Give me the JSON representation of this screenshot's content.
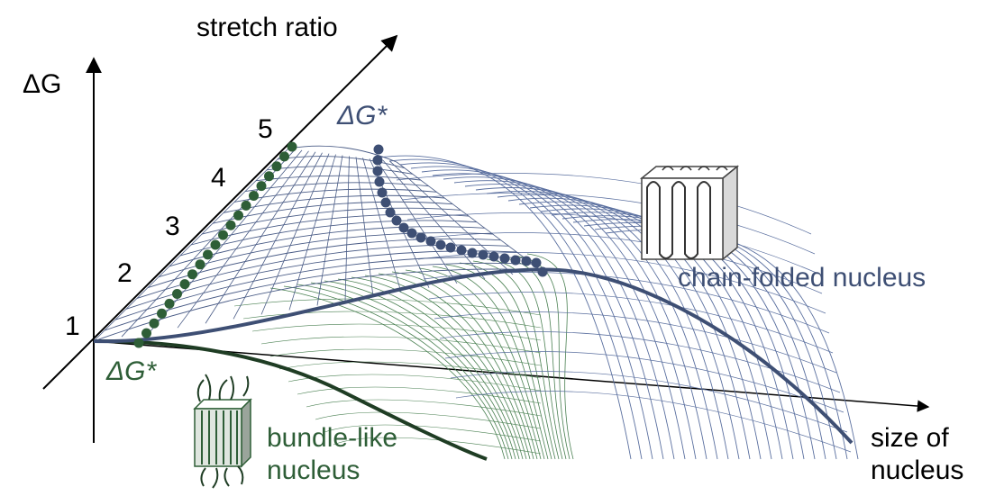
{
  "labels": {
    "delta_g_axis": "ΔG",
    "stretch_ratio_axis": "stretch ratio",
    "size_axis_line1": "size of",
    "size_axis_line2": "nucleus",
    "delta_g_star_top": "ΔG*",
    "delta_g_star_bottom": "ΔG*",
    "chain_folded": "chain-folded nucleus",
    "bundle_line1": "bundle-like",
    "bundle_line2": "nucleus"
  },
  "stretch_ticks": [
    "1",
    "2",
    "3",
    "4",
    "5"
  ],
  "colors": {
    "axis": "#000000",
    "chain_folded": "#3e4f74",
    "chain_folded_mesh": "#5a6f9f",
    "bundle": "#2e5e37",
    "bundle_mesh": "#4a8052",
    "grid": "#4a5c86"
  }
}
